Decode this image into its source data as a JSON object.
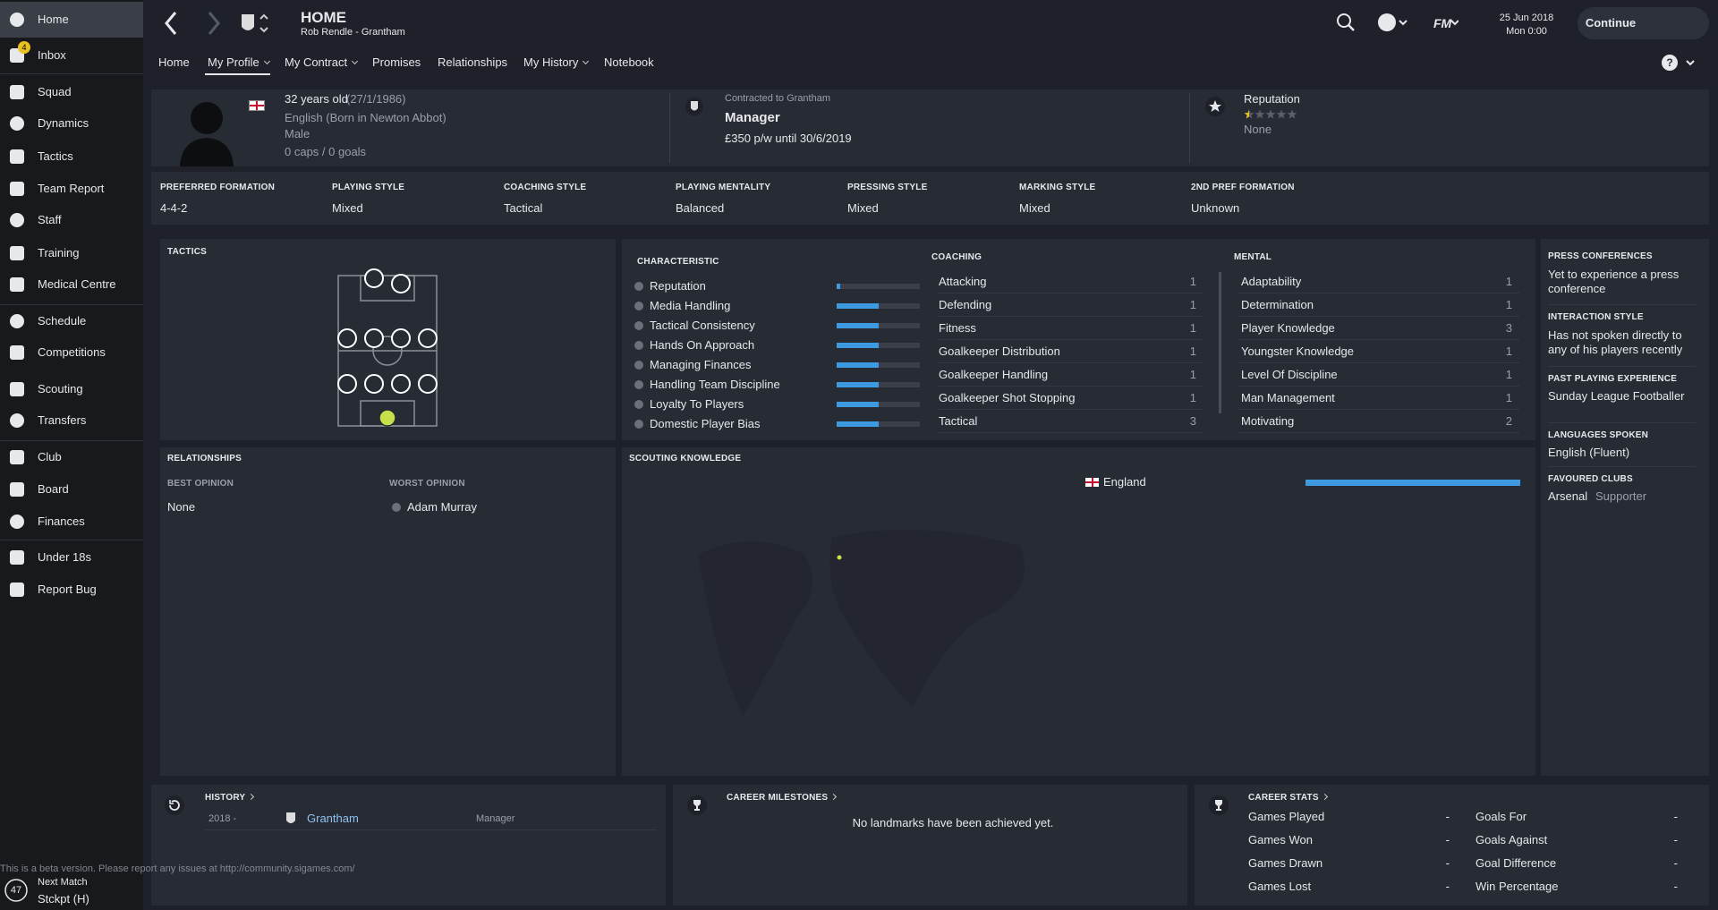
{
  "sidebar": {
    "items": [
      {
        "label": "Home",
        "active": true
      },
      {
        "label": "Inbox",
        "badge": "4"
      },
      {
        "label": "Squad"
      },
      {
        "label": "Dynamics"
      },
      {
        "label": "Tactics"
      },
      {
        "label": "Team Report"
      },
      {
        "label": "Staff"
      },
      {
        "label": "Training"
      },
      {
        "label": "Medical Centre"
      },
      {
        "label": "Schedule"
      },
      {
        "label": "Competitions"
      },
      {
        "label": "Scouting"
      },
      {
        "label": "Transfers"
      },
      {
        "label": "Club"
      },
      {
        "label": "Board"
      },
      {
        "label": "Finances"
      },
      {
        "label": "Under 18s"
      },
      {
        "label": "Report Bug"
      }
    ],
    "next_match": {
      "days": "47",
      "label": "Next Match",
      "opponent": "Stckpt (H)"
    }
  },
  "beta_notice": "This is a beta version. Please report any issues at http://community.sigames.com/",
  "header": {
    "title": "HOME",
    "subtitle": "Rob Rendle - Grantham",
    "date": "25 Jun 2018",
    "time": "Mon 0:00",
    "continue": "Continue",
    "tabs": [
      {
        "label": "Home"
      },
      {
        "label": "My Profile",
        "active": true,
        "menu": true
      },
      {
        "label": "My Contract",
        "menu": true
      },
      {
        "label": "Promises"
      },
      {
        "label": "Relationships"
      },
      {
        "label": "My History",
        "menu": true
      },
      {
        "label": "Notebook"
      }
    ]
  },
  "profile": {
    "age": "32 years old",
    "dob": "(27/1/1986)",
    "nationality": "English (Born in Newton Abbot)",
    "gender": "Male",
    "caps": "0 caps / 0 goals",
    "contract_label": "Contracted to Grantham",
    "role": "Manager",
    "wage": "£350 p/w until 30/6/2019",
    "reputation_label": "Reputation",
    "reputation_stars": 0.5,
    "reputation_value": "None"
  },
  "styles": [
    {
      "label": "PREFERRED FORMATION",
      "value": "4-4-2"
    },
    {
      "label": "PLAYING STYLE",
      "value": "Mixed"
    },
    {
      "label": "COACHING STYLE",
      "value": "Tactical"
    },
    {
      "label": "PLAYING MENTALITY",
      "value": "Balanced"
    },
    {
      "label": "PRESSING STYLE",
      "value": "Mixed"
    },
    {
      "label": "MARKING STYLE",
      "value": "Mixed"
    },
    {
      "label": "2ND PREF FORMATION",
      "value": "Unknown"
    }
  ],
  "tactics": {
    "title": "TACTICS"
  },
  "attributes": {
    "characteristic": {
      "title": "CHARACTERISTIC",
      "rows": [
        {
          "label": "Reputation",
          "level": 4
        },
        {
          "label": "Media Handling",
          "level": 50
        },
        {
          "label": "Tactical Consistency",
          "level": 50
        },
        {
          "label": "Hands On Approach",
          "level": 50
        },
        {
          "label": "Managing Finances",
          "level": 50
        },
        {
          "label": "Handling Team Discipline",
          "level": 50
        },
        {
          "label": "Loyalty To Players",
          "level": 50
        },
        {
          "label": "Domestic Player Bias",
          "level": 50
        }
      ]
    },
    "coaching": {
      "title": "COACHING",
      "rows": [
        {
          "label": "Attacking",
          "value": 1
        },
        {
          "label": "Defending",
          "value": 1
        },
        {
          "label": "Fitness",
          "value": 1
        },
        {
          "label": "Goalkeeper Distribution",
          "value": 1
        },
        {
          "label": "Goalkeeper Handling",
          "value": 1
        },
        {
          "label": "Goalkeeper Shot Stopping",
          "value": 1
        },
        {
          "label": "Tactical",
          "value": 3
        }
      ]
    },
    "mental": {
      "title": "MENTAL",
      "rows": [
        {
          "label": "Adaptability",
          "value": 1
        },
        {
          "label": "Determination",
          "value": 1
        },
        {
          "label": "Player Knowledge",
          "value": 3
        },
        {
          "label": "Youngster Knowledge",
          "value": 1
        },
        {
          "label": "Level Of Discipline",
          "value": 1
        },
        {
          "label": "Man Management",
          "value": 1
        },
        {
          "label": "Motivating",
          "value": 2
        }
      ]
    }
  },
  "info": [
    {
      "title": "PRESS CONFERENCES",
      "text": "Yet to experience a press conference"
    },
    {
      "title": "INTERACTION STYLE",
      "text": "Has not spoken directly to any of his players recently"
    },
    {
      "title": "PAST PLAYING EXPERIENCE",
      "text": "Sunday League Footballer"
    },
    {
      "title": "LANGUAGES SPOKEN",
      "text": "English (Fluent)"
    },
    {
      "title": "FAVOURED CLUBS",
      "text": "Arsenal",
      "note": "Supporter"
    }
  ],
  "relationships": {
    "title": "RELATIONSHIPS",
    "best_label": "BEST OPINION",
    "best": "None",
    "worst_label": "WORST OPINION",
    "worst": "Adam Murray"
  },
  "scouting": {
    "title": "SCOUTING KNOWLEDGE",
    "rows": [
      {
        "label": "England",
        "level": 100
      }
    ]
  },
  "history": {
    "title": "HISTORY",
    "rows": [
      {
        "year": "2018 -",
        "club": "Grantham",
        "role": "Manager"
      }
    ]
  },
  "milestones": {
    "title": "CAREER MILESTONES",
    "text": "No landmarks have been achieved yet."
  },
  "career_stats": {
    "title": "CAREER STATS",
    "columns": [
      [
        {
          "label": "Games Played",
          "value": "-"
        },
        {
          "label": "Games Won",
          "value": "-"
        },
        {
          "label": "Games Drawn",
          "value": "-"
        },
        {
          "label": "Games Lost",
          "value": "-"
        }
      ],
      [
        {
          "label": "Goals For",
          "value": "-"
        },
        {
          "label": "Goals Against",
          "value": "-"
        },
        {
          "label": "Goal Difference",
          "value": "-"
        },
        {
          "label": "Win Percentage",
          "value": "-"
        }
      ]
    ]
  }
}
